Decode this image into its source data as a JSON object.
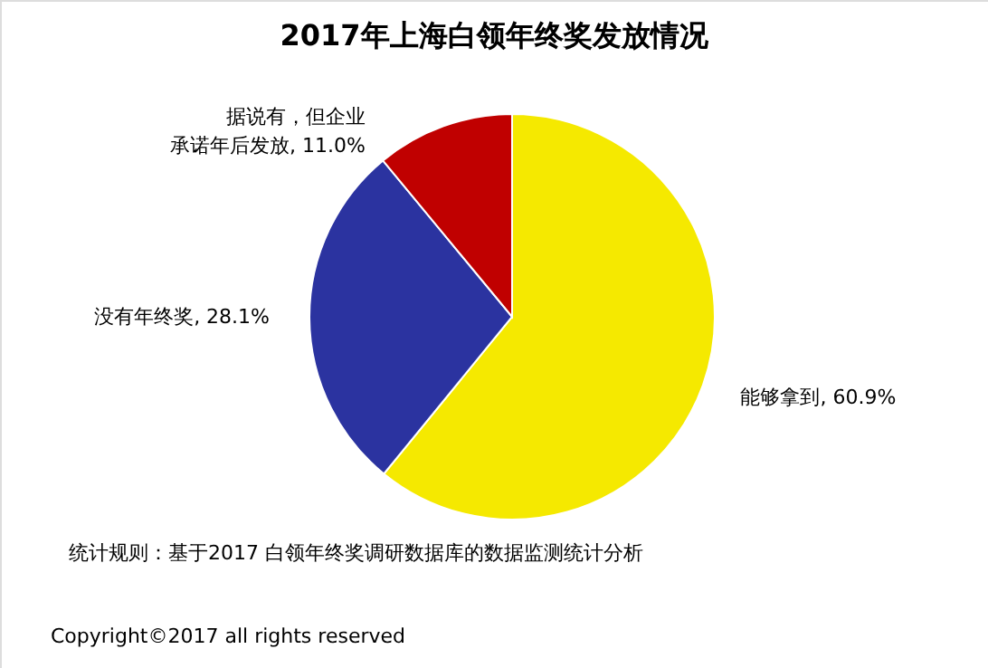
{
  "chart_data": {
    "type": "pie",
    "title": "2017年上海白领年终奖发放情况",
    "categories": [
      "能够拿到",
      "没有年终奖",
      "据说有，但企业承诺年后发放"
    ],
    "values": [
      60.9,
      28.1,
      11.0
    ],
    "colors": [
      "#f5e900",
      "#2b33a0",
      "#c00000"
    ],
    "value_labels": [
      "60.9%",
      "28.1%",
      "11.0%"
    ],
    "annotations": [
      "统计规则：基于2017 白领年终奖调研数据库的数据监测统计分析",
      "Copyright©2017 all rights reserved"
    ]
  }
}
